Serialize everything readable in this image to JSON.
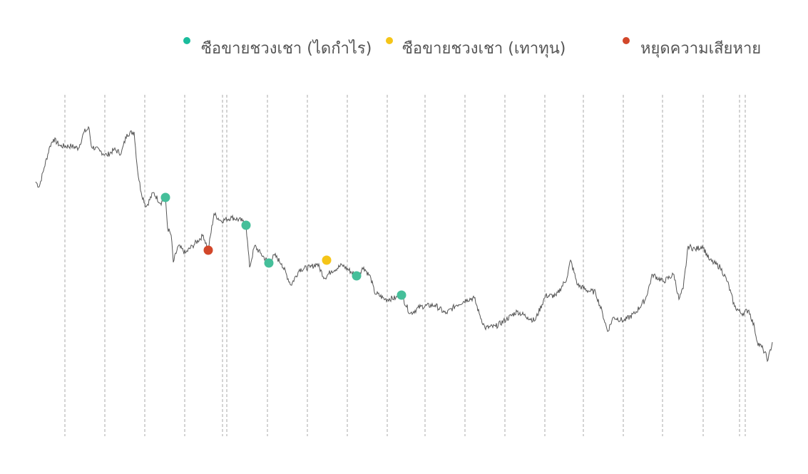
{
  "chart_data": {
    "type": "line",
    "title": "",
    "xlabel": "",
    "ylabel": "",
    "grid": "vertical dashed lines only",
    "legend_placement": "top-right",
    "xlim": [
      0,
      1033
    ],
    "ylim": [
      0,
      500
    ],
    "line_color": "#555555",
    "line_points": [
      [
        0,
        365
      ],
      [
        5,
        358
      ],
      [
        12,
        385
      ],
      [
        20,
        415
      ],
      [
        25,
        425
      ],
      [
        35,
        415
      ],
      [
        50,
        415
      ],
      [
        60,
        412
      ],
      [
        68,
        435
      ],
      [
        75,
        440
      ],
      [
        78,
        415
      ],
      [
        90,
        408
      ],
      [
        100,
        402
      ],
      [
        110,
        410
      ],
      [
        120,
        405
      ],
      [
        128,
        432
      ],
      [
        138,
        435
      ],
      [
        143,
        380
      ],
      [
        148,
        350
      ],
      [
        155,
        330
      ],
      [
        165,
        350
      ],
      [
        175,
        335
      ],
      [
        182,
        343
      ],
      [
        185,
        300
      ],
      [
        190,
        290
      ],
      [
        193,
        252
      ],
      [
        200,
        275
      ],
      [
        210,
        265
      ],
      [
        220,
        275
      ],
      [
        235,
        290
      ],
      [
        242,
        269
      ],
      [
        250,
        320
      ],
      [
        260,
        310
      ],
      [
        275,
        315
      ],
      [
        290,
        310
      ],
      [
        295,
        304
      ],
      [
        300,
        245
      ],
      [
        307,
        275
      ],
      [
        315,
        265
      ],
      [
        327,
        251
      ],
      [
        335,
        262
      ],
      [
        345,
        250
      ],
      [
        358,
        220
      ],
      [
        370,
        242
      ],
      [
        385,
        245
      ],
      [
        395,
        250
      ],
      [
        405,
        230
      ],
      [
        415,
        240
      ],
      [
        430,
        248
      ],
      [
        450,
        233
      ],
      [
        460,
        245
      ],
      [
        470,
        230
      ],
      [
        475,
        210
      ],
      [
        490,
        200
      ],
      [
        505,
        202
      ],
      [
        513,
        206
      ],
      [
        525,
        180
      ],
      [
        540,
        190
      ],
      [
        560,
        192
      ],
      [
        575,
        180
      ],
      [
        590,
        192
      ],
      [
        605,
        200
      ],
      [
        615,
        202
      ],
      [
        622,
        180
      ],
      [
        630,
        160
      ],
      [
        645,
        162
      ],
      [
        660,
        172
      ],
      [
        675,
        183
      ],
      [
        690,
        175
      ],
      [
        700,
        170
      ],
      [
        715,
        205
      ],
      [
        730,
        205
      ],
      [
        745,
        230
      ],
      [
        750,
        255
      ],
      [
        760,
        220
      ],
      [
        775,
        212
      ],
      [
        785,
        210
      ],
      [
        795,
        180
      ],
      [
        802,
        155
      ],
      [
        810,
        175
      ],
      [
        825,
        170
      ],
      [
        840,
        180
      ],
      [
        855,
        200
      ],
      [
        865,
        235
      ],
      [
        880,
        225
      ],
      [
        895,
        235
      ],
      [
        902,
        200
      ],
      [
        908,
        215
      ],
      [
        915,
        275
      ],
      [
        925,
        270
      ],
      [
        935,
        275
      ],
      [
        945,
        255
      ],
      [
        960,
        245
      ],
      [
        970,
        225
      ],
      [
        980,
        190
      ],
      [
        990,
        180
      ],
      [
        1000,
        185
      ],
      [
        1008,
        160
      ],
      [
        1012,
        140
      ],
      [
        1020,
        130
      ],
      [
        1027,
        115
      ],
      [
        1033,
        140
      ]
    ],
    "vertical_lines_x": [
      41,
      97,
      153,
      209,
      262,
      268,
      325,
      381,
      437,
      493,
      546,
      602,
      658,
      714,
      768,
      824,
      879,
      936,
      987,
      995
    ],
    "series": [
      {
        "name": "ซือขายชวงเชา (ไดกำไร)",
        "color": "#45bf9a",
        "points": [
          [
            182,
            343
          ],
          [
            295,
            304
          ],
          [
            327,
            251
          ],
          [
            450,
            233
          ],
          [
            513,
            206
          ]
        ]
      },
      {
        "name": "ซือขายชวงเชา (เทาทุน)",
        "color": "#f5c518",
        "points": [
          [
            408,
            255
          ]
        ]
      },
      {
        "name": "หยุดความเสียหาย",
        "color": "#d2472a",
        "points": [
          [
            242,
            269
          ]
        ]
      }
    ],
    "legend": [
      {
        "label": "ซือขายชวงเชา (ไดกำไร)",
        "color": "#1abc9c"
      },
      {
        "label": "ซือขายชวงเชา (เทาทุน)",
        "color": "#f5c518"
      },
      {
        "label": "หยุดความเสียหาย",
        "color": "#d2472a"
      }
    ]
  }
}
